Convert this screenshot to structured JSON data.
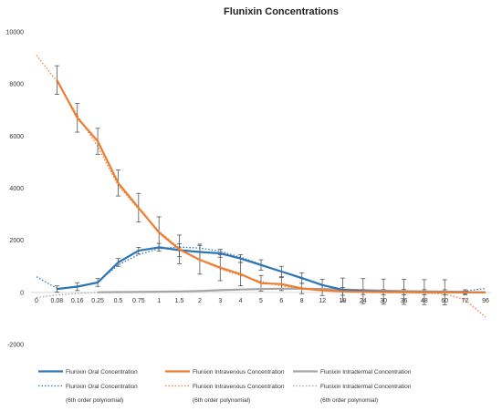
{
  "chart_data": {
    "type": "line",
    "title": "Flunixin Concentrations",
    "xlabel": "",
    "ylabel": "",
    "ylim": [
      -2000,
      10000
    ],
    "yticks": [
      -2000,
      0,
      2000,
      4000,
      6000,
      8000,
      10000
    ],
    "grid": false,
    "legend_position": "bottom",
    "categories": [
      "0",
      "0.08",
      "0.16",
      "0.25",
      "0.5",
      "0.75",
      "1",
      "1.5",
      "2",
      "3",
      "4",
      "5",
      "6",
      "8",
      "12",
      "18",
      "24",
      "30",
      "36",
      "48",
      "60",
      "72",
      "96"
    ],
    "series": [
      {
        "name": "Flunixin Oral Concentration",
        "color": "#2e75b6",
        "values": [
          null,
          130,
          220,
          380,
          1150,
          1600,
          1730,
          1620,
          1550,
          1500,
          1300,
          1050,
          800,
          550,
          280,
          100,
          50,
          30,
          20,
          10,
          5,
          0,
          0
        ],
        "errors": [
          null,
          120,
          150,
          150,
          150,
          130,
          150,
          250,
          300,
          150,
          150,
          200,
          200,
          200,
          220,
          450,
          480,
          480,
          480,
          480,
          480,
          100,
          0
        ]
      },
      {
        "name": "Flunixin Intravenous Concentration",
        "color": "#ed7d31",
        "values": [
          null,
          8150,
          6700,
          5800,
          4200,
          3250,
          2300,
          1650,
          1250,
          950,
          700,
          350,
          320,
          150,
          80,
          40,
          20,
          10,
          10,
          5,
          0,
          0,
          0
        ],
        "errors": [
          null,
          550,
          550,
          500,
          500,
          550,
          600,
          550,
          550,
          500,
          450,
          300,
          250,
          200,
          200,
          150,
          100,
          100,
          100,
          100,
          100,
          50,
          0
        ]
      },
      {
        "name": "Flunixin Intradermal Concentration",
        "color": "#a5a5a5",
        "values": [
          null,
          null,
          null,
          5,
          10,
          15,
          25,
          35,
          55,
          85,
          110,
          130,
          140,
          140,
          130,
          110,
          90,
          70,
          55,
          40,
          30,
          20,
          null
        ],
        "errors": []
      }
    ],
    "trendlines": [
      {
        "name": "Flunixin Oral Concentration (6th order polynomial)",
        "color": "#2e75b6",
        "values": [
          600,
          150,
          200,
          400,
          1050,
          1450,
          1680,
          1740,
          1700,
          1580,
          1350,
          1080,
          800,
          520,
          280,
          120,
          40,
          10,
          0,
          -10,
          10,
          50,
          150
        ]
      },
      {
        "name": "Flunixin Intravenous Concentration (6th order polynomial)",
        "color": "#ed7d31",
        "values": [
          9100,
          8100,
          6800,
          5600,
          4100,
          3200,
          2350,
          1700,
          1250,
          900,
          650,
          420,
          250,
          140,
          60,
          20,
          0,
          -10,
          -20,
          -30,
          -60,
          -280,
          -950
        ]
      },
      {
        "name": "Flunixin Intradermal Concentration (6th order polynomial)",
        "color": "#a5a5a5",
        "values": [
          -200,
          -100,
          -40,
          0,
          10,
          15,
          25,
          40,
          60,
          85,
          110,
          130,
          140,
          140,
          130,
          110,
          90,
          70,
          55,
          40,
          30,
          20,
          10
        ]
      }
    ]
  },
  "legend": [
    {
      "label": "Flunixin Oral Concentration",
      "style": "solid",
      "color": "#2e75b6"
    },
    {
      "label": "Flunixin Intravenous Concentration",
      "style": "solid",
      "color": "#ed7d31"
    },
    {
      "label": "Flunixin Intradermal Concentration",
      "style": "solid",
      "color": "#a5a5a5"
    },
    {
      "label": "Flunixin Oral Concentration",
      "style": "dotted",
      "color": "#2e75b6"
    },
    {
      "label": "Flunixin Intravenous Concentration",
      "style": "dotted",
      "color": "#ed7d31"
    },
    {
      "label": "Flunixin Intradermal Concentration",
      "style": "dotted",
      "color": "#a5a5a5"
    },
    {
      "label": "(6th order polynomial)",
      "style": "none",
      "color": ""
    },
    {
      "label": "(6th order polynomial)",
      "style": "none",
      "color": ""
    },
    {
      "label": "(6th order polynomial)",
      "style": "none",
      "color": ""
    }
  ]
}
